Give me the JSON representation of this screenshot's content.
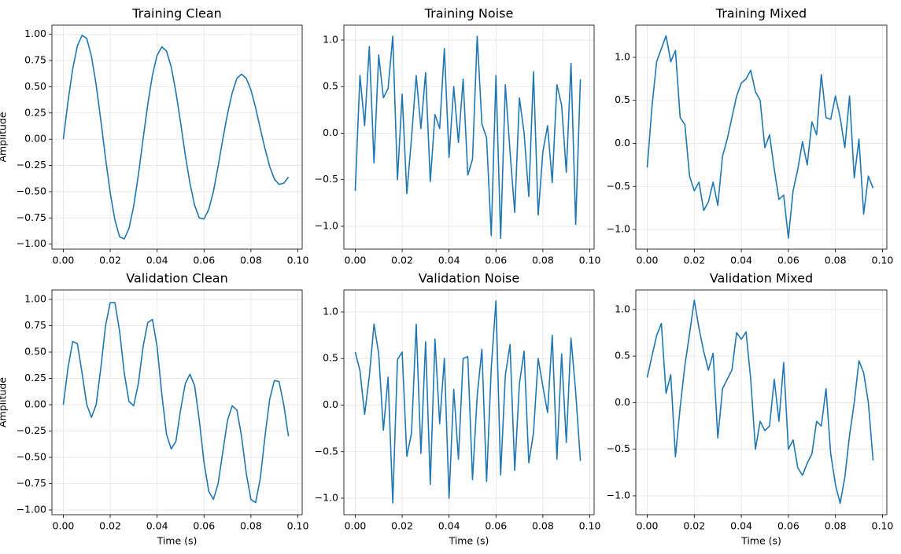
{
  "chart_data": [
    {
      "type": "line",
      "title": "Training Clean",
      "ylabel": "Amplitude",
      "color": "#1f77b4",
      "grid": true,
      "x": [
        0,
        0.002,
        0.004,
        0.006,
        0.008,
        0.01,
        0.012,
        0.014,
        0.016,
        0.018,
        0.02,
        0.022,
        0.024,
        0.026,
        0.028,
        0.03,
        0.032,
        0.034,
        0.036,
        0.038,
        0.04,
        0.042,
        0.044,
        0.046,
        0.048,
        0.05,
        0.052,
        0.054,
        0.056,
        0.058,
        0.06,
        0.062,
        0.064,
        0.066,
        0.068,
        0.07,
        0.072,
        0.074,
        0.076,
        0.078,
        0.08,
        0.082,
        0.084,
        0.086,
        0.088,
        0.09,
        0.092,
        0.094,
        0.096
      ],
      "values": [
        0,
        0.36,
        0.67,
        0.89,
        0.99,
        0.96,
        0.79,
        0.52,
        0.18,
        -0.18,
        -0.51,
        -0.77,
        -0.93,
        -0.95,
        -0.85,
        -0.64,
        -0.34,
        0,
        0.33,
        0.61,
        0.8,
        0.88,
        0.84,
        0.69,
        0.45,
        0.16,
        -0.15,
        -0.42,
        -0.63,
        -0.75,
        -0.76,
        -0.67,
        -0.5,
        -0.26,
        0,
        0.24,
        0.44,
        0.58,
        0.62,
        0.58,
        0.47,
        0.3,
        0.1,
        -0.09,
        -0.26,
        -0.38,
        -0.43,
        -0.42,
        -0.36
      ],
      "xlim": [
        -0.00485,
        0.10185
      ],
      "xticks": [
        {
          "value": 0,
          "label": "0.00"
        },
        {
          "value": 0.02,
          "label": "0.02"
        },
        {
          "value": 0.04,
          "label": "0.04"
        },
        {
          "value": 0.06,
          "label": "0.06"
        },
        {
          "value": 0.08,
          "label": "0.08"
        },
        {
          "value": 0.1,
          "label": "0.10"
        }
      ],
      "ylim": [
        -1.047,
        1.087
      ],
      "yticks": [
        {
          "value": -1,
          "label": "−1.00"
        },
        {
          "value": -0.75,
          "label": "−0.75"
        },
        {
          "value": -0.5,
          "label": "−0.50"
        },
        {
          "value": -0.25,
          "label": "−0.25"
        },
        {
          "value": 0,
          "label": "0.00"
        },
        {
          "value": 0.25,
          "label": "0.25"
        },
        {
          "value": 0.5,
          "label": "0.50"
        },
        {
          "value": 0.75,
          "label": "0.75"
        },
        {
          "value": 1,
          "label": "1.00"
        }
      ]
    },
    {
      "type": "line",
      "title": "Training Noise",
      "color": "#1f77b4",
      "grid": true,
      "x": [
        0,
        0.002,
        0.004,
        0.006,
        0.008,
        0.01,
        0.012,
        0.014,
        0.016,
        0.018,
        0.02,
        0.022,
        0.024,
        0.026,
        0.028,
        0.03,
        0.032,
        0.034,
        0.036,
        0.038,
        0.04,
        0.042,
        0.044,
        0.046,
        0.048,
        0.05,
        0.052,
        0.054,
        0.056,
        0.058,
        0.06,
        0.062,
        0.064,
        0.066,
        0.068,
        0.07,
        0.072,
        0.074,
        0.076,
        0.078,
        0.08,
        0.082,
        0.084,
        0.086,
        0.088,
        0.09,
        0.092,
        0.094,
        0.096
      ],
      "values": [
        -0.62,
        0.62,
        0.08,
        0.93,
        -0.32,
        0.84,
        0.38,
        0.48,
        1.04,
        -0.5,
        0.42,
        -0.65,
        -0.05,
        0.62,
        0.05,
        0.65,
        -0.52,
        0.2,
        0.05,
        0.91,
        -0.26,
        0.5,
        -0.1,
        0.58,
        -0.45,
        -0.28,
        1.04,
        0.1,
        -0.05,
        -1.1,
        0.62,
        -1.13,
        0.52,
        -0.2,
        -0.85,
        0.38,
        0,
        -0.68,
        0.66,
        -0.88,
        -0.2,
        0.08,
        -0.53,
        0.52,
        0.3,
        -0.42,
        0.75,
        -0.98,
        0.58
      ],
      "xlim": [
        -0.00485,
        0.10185
      ],
      "xticks": [
        {
          "value": 0,
          "label": "0.00"
        },
        {
          "value": 0.02,
          "label": "0.02"
        },
        {
          "value": 0.04,
          "label": "0.04"
        },
        {
          "value": 0.06,
          "label": "0.06"
        },
        {
          "value": 0.08,
          "label": "0.08"
        },
        {
          "value": 0.1,
          "label": "0.10"
        }
      ],
      "ylim": [
        -1.245,
        1.16
      ],
      "yticks": [
        {
          "value": -1,
          "label": "−1.0"
        },
        {
          "value": -0.5,
          "label": "−0.5"
        },
        {
          "value": 0,
          "label": "0.0"
        },
        0.5,
        {
          "value": 1,
          "label": "1.0"
        }
      ]
    },
    {
      "type": "line",
      "title": "Training Mixed",
      "color": "#1f77b4",
      "grid": true,
      "x": [
        0,
        0.002,
        0.004,
        0.006,
        0.008,
        0.01,
        0.012,
        0.014,
        0.016,
        0.018,
        0.02,
        0.022,
        0.024,
        0.026,
        0.028,
        0.03,
        0.032,
        0.034,
        0.036,
        0.038,
        0.04,
        0.042,
        0.044,
        0.046,
        0.048,
        0.05,
        0.052,
        0.054,
        0.056,
        0.058,
        0.06,
        0.062,
        0.064,
        0.066,
        0.068,
        0.07,
        0.072,
        0.074,
        0.076,
        0.078,
        0.08,
        0.082,
        0.084,
        0.086,
        0.088,
        0.09,
        0.092,
        0.094,
        0.096
      ],
      "values": [
        -0.28,
        0.42,
        0.95,
        1.1,
        1.25,
        0.95,
        1.08,
        0.3,
        0.22,
        -0.38,
        -0.55,
        -0.45,
        -0.78,
        -0.68,
        -0.45,
        -0.72,
        -0.15,
        0.05,
        0.3,
        0.55,
        0.7,
        0.75,
        0.85,
        0.6,
        0.5,
        -0.05,
        0.1,
        -0.3,
        -0.65,
        -0.6,
        -1.1,
        -0.55,
        -0.3,
        0.02,
        -0.25,
        0.25,
        0.1,
        0.8,
        0.3,
        0.28,
        0.55,
        0.3,
        -0.05,
        0.55,
        -0.4,
        0.05,
        -0.82,
        -0.38,
        -0.52
      ],
      "xlim": [
        -0.00485,
        0.10185
      ],
      "xticks": [
        {
          "value": 0,
          "label": "0.00"
        },
        {
          "value": 0.02,
          "label": "0.02"
        },
        {
          "value": 0.04,
          "label": "0.04"
        },
        {
          "value": 0.06,
          "label": "0.06"
        },
        {
          "value": 0.08,
          "label": "0.08"
        },
        {
          "value": 0.1,
          "label": "0.10"
        }
      ],
      "ylim": [
        -1.228,
        1.374
      ],
      "yticks": [
        {
          "value": -1,
          "label": "−1.0"
        },
        {
          "value": -0.5,
          "label": "−0.5"
        },
        {
          "value": 0,
          "label": "0.0"
        },
        0.5,
        {
          "value": 1,
          "label": "1.0"
        }
      ]
    },
    {
      "type": "line",
      "title": "Validation Clean",
      "ylabel": "Amplitude",
      "xlabel": "Time (s)",
      "color": "#1f77b4",
      "grid": true,
      "x": [
        0,
        0.002,
        0.004,
        0.006,
        0.008,
        0.01,
        0.012,
        0.014,
        0.016,
        0.018,
        0.02,
        0.022,
        0.024,
        0.026,
        0.028,
        0.03,
        0.032,
        0.034,
        0.036,
        0.038,
        0.04,
        0.042,
        0.044,
        0.046,
        0.048,
        0.05,
        0.052,
        0.054,
        0.056,
        0.058,
        0.06,
        0.062,
        0.064,
        0.066,
        0.068,
        0.07,
        0.072,
        0.074,
        0.076,
        0.078,
        0.08,
        0.082,
        0.084,
        0.086,
        0.088,
        0.09,
        0.092,
        0.094,
        0.096
      ],
      "values": [
        0,
        0.35,
        0.6,
        0.58,
        0.3,
        0,
        -0.12,
        0,
        0.35,
        0.75,
        0.97,
        0.97,
        0.7,
        0.3,
        0.03,
        -0.01,
        0.2,
        0.55,
        0.78,
        0.81,
        0.55,
        0.1,
        -0.28,
        -0.42,
        -0.35,
        -0.05,
        0.2,
        0.29,
        0.18,
        -0.15,
        -0.55,
        -0.82,
        -0.9,
        -0.75,
        -0.45,
        -0.15,
        -0.01,
        -0.05,
        -0.3,
        -0.65,
        -0.9,
        -0.93,
        -0.7,
        -0.3,
        0.05,
        0.23,
        0.22,
        0,
        -0.3
      ],
      "xlim": [
        -0.00485,
        0.10185
      ],
      "xticks": [
        {
          "value": 0,
          "label": "0.00"
        },
        {
          "value": 0.02,
          "label": "0.02"
        },
        {
          "value": 0.04,
          "label": "0.04"
        },
        {
          "value": 0.06,
          "label": "0.06"
        },
        {
          "value": 0.08,
          "label": "0.08"
        },
        {
          "value": 0.1,
          "label": "0.10"
        }
      ],
      "ylim": [
        -1.045,
        1.09
      ],
      "yticks": [
        {
          "value": -1,
          "label": "−1.00"
        },
        {
          "value": -0.75,
          "label": "−0.75"
        },
        {
          "value": -0.5,
          "label": "−0.50"
        },
        {
          "value": -0.25,
          "label": "−0.25"
        },
        {
          "value": 0,
          "label": "0.00"
        },
        {
          "value": 0.25,
          "label": "0.25"
        },
        {
          "value": 0.5,
          "label": "0.50"
        },
        {
          "value": 0.75,
          "label": "0.75"
        },
        {
          "value": 1,
          "label": "1.00"
        }
      ]
    },
    {
      "type": "line",
      "title": "Validation Noise",
      "xlabel": "Time (s)",
      "color": "#1f77b4",
      "grid": true,
      "x": [
        0,
        0.002,
        0.004,
        0.006,
        0.008,
        0.01,
        0.012,
        0.014,
        0.016,
        0.018,
        0.02,
        0.022,
        0.024,
        0.026,
        0.028,
        0.03,
        0.032,
        0.034,
        0.036,
        0.038,
        0.04,
        0.042,
        0.044,
        0.046,
        0.048,
        0.05,
        0.052,
        0.054,
        0.056,
        0.058,
        0.06,
        0.062,
        0.064,
        0.066,
        0.068,
        0.07,
        0.072,
        0.074,
        0.076,
        0.078,
        0.08,
        0.082,
        0.084,
        0.086,
        0.088,
        0.09,
        0.092,
        0.094,
        0.096
      ],
      "values": [
        0.57,
        0.37,
        -0.1,
        0.31,
        0.87,
        0.55,
        -0.27,
        0.3,
        -1.05,
        0.49,
        0.57,
        -0.55,
        -0.3,
        0.87,
        -0.52,
        0.68,
        -0.85,
        0.71,
        -0.2,
        0.5,
        -1,
        0.17,
        -0.58,
        0.5,
        0.52,
        -0.8,
        0.1,
        0.6,
        -0.82,
        0.4,
        1.12,
        -0.75,
        0.32,
        0.65,
        -0.7,
        0.23,
        0.58,
        -0.62,
        -0.3,
        0.5,
        0.2,
        -0.08,
        0.75,
        -0.58,
        0.55,
        -0.4,
        0.72,
        0.14,
        -0.6
      ],
      "xlim": [
        -0.00485,
        0.10185
      ],
      "xticks": [
        {
          "value": 0,
          "label": "0.00"
        },
        {
          "value": 0.02,
          "label": "0.02"
        },
        {
          "value": 0.04,
          "label": "0.04"
        },
        {
          "value": 0.06,
          "label": "0.06"
        },
        {
          "value": 0.08,
          "label": "0.08"
        },
        {
          "value": 0.1,
          "label": "0.10"
        }
      ],
      "ylim": [
        -1.177,
        1.236
      ],
      "yticks": [
        {
          "value": -1,
          "label": "−1.0"
        },
        {
          "value": -0.5,
          "label": "−0.5"
        },
        {
          "value": 0,
          "label": "0.0"
        },
        0.5,
        {
          "value": 1,
          "label": "1.0"
        }
      ]
    },
    {
      "type": "line",
      "title": "Validation Mixed",
      "xlabel": "Time (s)",
      "color": "#1f77b4",
      "grid": true,
      "x": [
        0,
        0.002,
        0.004,
        0.006,
        0.008,
        0.01,
        0.012,
        0.014,
        0.016,
        0.018,
        0.02,
        0.022,
        0.024,
        0.026,
        0.028,
        0.03,
        0.032,
        0.034,
        0.036,
        0.038,
        0.04,
        0.042,
        0.044,
        0.046,
        0.048,
        0.05,
        0.052,
        0.054,
        0.056,
        0.058,
        0.06,
        0.062,
        0.064,
        0.066,
        0.068,
        0.07,
        0.072,
        0.074,
        0.076,
        0.078,
        0.08,
        0.082,
        0.084,
        0.086,
        0.088,
        0.09,
        0.092,
        0.094,
        0.096
      ],
      "values": [
        0.27,
        0.5,
        0.72,
        0.85,
        0.1,
        0.3,
        -0.58,
        -0.05,
        0.4,
        0.74,
        1.1,
        0.8,
        0.55,
        0.35,
        0.53,
        -0.38,
        0.15,
        0.25,
        0.35,
        0.75,
        0.68,
        0.76,
        0.25,
        -0.5,
        -0.2,
        -0.3,
        -0.25,
        0.25,
        -0.2,
        0.43,
        -0.5,
        -0.4,
        -0.7,
        -0.78,
        -0.65,
        -0.55,
        -0.2,
        -0.25,
        0.15,
        -0.55,
        -0.88,
        -1.08,
        -0.8,
        -0.35,
        0,
        0.45,
        0.32,
        0,
        -0.62
      ],
      "xlim": [
        -0.00485,
        0.10185
      ],
      "xticks": [
        {
          "value": 0,
          "label": "0.00"
        },
        {
          "value": 0.02,
          "label": "0.02"
        },
        {
          "value": 0.04,
          "label": "0.04"
        },
        {
          "value": 0.06,
          "label": "0.06"
        },
        {
          "value": 0.08,
          "label": "0.08"
        },
        {
          "value": 0.1,
          "label": "0.10"
        }
      ],
      "ylim": [
        -1.203,
        1.21
      ],
      "yticks": [
        {
          "value": -1,
          "label": "−1.0"
        },
        {
          "value": -0.5,
          "label": "−0.5"
        },
        {
          "value": 0,
          "label": "0.0"
        },
        0.5,
        {
          "value": 1,
          "label": "1.0"
        }
      ]
    }
  ]
}
